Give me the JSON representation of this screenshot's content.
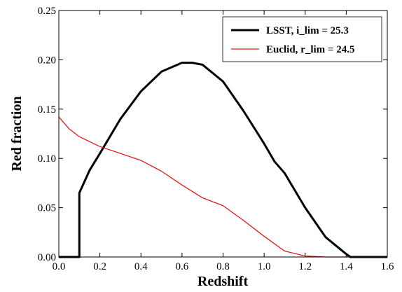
{
  "chart_data": {
    "type": "line",
    "xlabel": "Redshift",
    "ylabel": "Red fraction",
    "xlim": [
      0,
      1.6
    ],
    "ylim": [
      0,
      0.25
    ],
    "xticks": [
      {
        "value": 0,
        "label": "0.0"
      },
      0.2,
      0.4,
      0.6,
      0.8,
      {
        "value": 1,
        "label": "1.0"
      },
      1.2,
      1.4,
      1.6
    ],
    "yticks": [
      {
        "value": 0,
        "label": "0.00"
      },
      0.05,
      {
        "value": 0.1,
        "label": "0.10"
      },
      0.15,
      {
        "value": 0.2,
        "label": "0.20"
      },
      0.25
    ],
    "legend": "upper right",
    "series": [
      {
        "name": "LSST, i_lim = 25.3",
        "color": "#000000",
        "x": [
          0,
          0.1,
          0.1,
          0.15,
          0.2,
          0.3,
          0.4,
          0.5,
          0.6,
          0.65,
          0.7,
          0.8,
          0.9,
          1.0,
          1.05,
          1.1,
          1.2,
          1.3,
          1.4,
          1.42,
          1.6
        ],
        "values": [
          0,
          0,
          0.065,
          0.088,
          0.105,
          0.14,
          0.168,
          0.188,
          0.197,
          0.197,
          0.195,
          0.178,
          0.148,
          0.115,
          0.097,
          0.085,
          0.05,
          0.02,
          0.003,
          0,
          0
        ]
      },
      {
        "name": "Euclid, r_lim = 24.5",
        "color": "#e31a1c",
        "x": [
          0,
          0.05,
          0.1,
          0.2,
          0.3,
          0.4,
          0.5,
          0.6,
          0.7,
          0.8,
          0.9,
          1.0,
          1.1,
          1.2,
          1.3,
          1.6
        ],
        "values": [
          0.142,
          0.13,
          0.122,
          0.112,
          0.105,
          0.098,
          0.087,
          0.073,
          0.06,
          0.052,
          0.037,
          0.021,
          0.006,
          0.001,
          0,
          0
        ]
      }
    ]
  }
}
